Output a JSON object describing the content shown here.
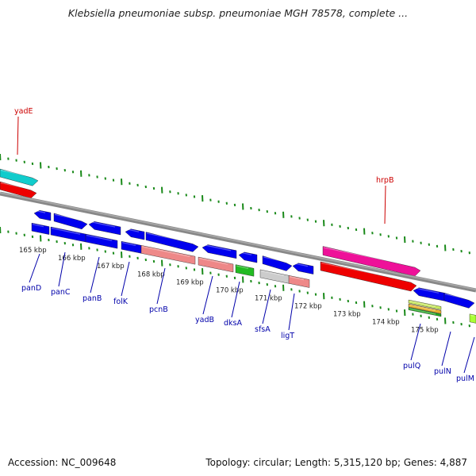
{
  "title": "Klebsiella pneumoniae subsp. pneumoniae MGH 78578, complete ...",
  "footer": {
    "accession": "Accession: NC_009648",
    "summary": "Topology: circular; Length: 5,315,120 bp; Genes: 4,887"
  },
  "colors": {
    "backbone": "#888888",
    "tick": "#1a8a1a",
    "label_top": "#cc0000",
    "label_bottom": "#0000aa",
    "cds": "#0000ee",
    "rna": "#ee0000",
    "pink_feature": "#ee1199",
    "cyan_feature": "#11cccc",
    "salmon_feature": "#ee8888",
    "green_feature": "#22bb22",
    "grey_feature": "#cccccc"
  },
  "ticks": [
    {
      "label": "165 kbp"
    },
    {
      "label": "166 kbp"
    },
    {
      "label": "167 kbp"
    },
    {
      "label": "168 kbp"
    },
    {
      "label": "169 kbp"
    },
    {
      "label": "170 kbp"
    },
    {
      "label": "171 kbp"
    },
    {
      "label": "172 kbp"
    },
    {
      "label": "173 kbp"
    },
    {
      "label": "174 kbp"
    },
    {
      "label": "175 kbp"
    }
  ],
  "genes_top": [
    {
      "name": "yadE"
    },
    {
      "name": "hrpB"
    }
  ],
  "genes_bottom": [
    {
      "name": "panD"
    },
    {
      "name": "panC"
    },
    {
      "name": "panB"
    },
    {
      "name": "folK"
    },
    {
      "name": "pcnB"
    },
    {
      "name": "yadB"
    },
    {
      "name": "dksA"
    },
    {
      "name": "sfsA"
    },
    {
      "name": "ligT"
    },
    {
      "name": "pulQ"
    },
    {
      "name": "pulN"
    },
    {
      "name": "pulM"
    }
  ]
}
